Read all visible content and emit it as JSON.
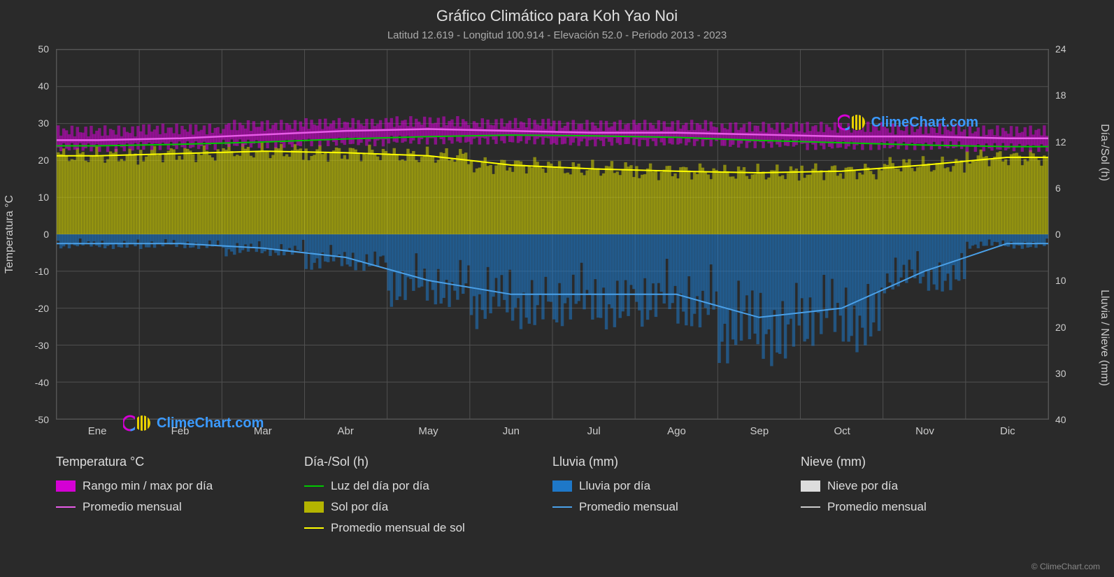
{
  "title": "Gráfico Climático para Koh Yao Noi",
  "subtitle": "Latitud 12.619 - Longitud 100.914 - Elevación 52.0 - Periodo 2013 - 2023",
  "background_color": "#2a2a2a",
  "grid_color": "#505050",
  "text_color": "#cccccc",
  "watermark_text": "ClimeChart.com",
  "watermark_color": "#3b9aff",
  "copyright": "© ClimeChart.com",
  "x_axis": {
    "labels": [
      "Ene",
      "Feb",
      "Mar",
      "Abr",
      "May",
      "Jun",
      "Jul",
      "Ago",
      "Sep",
      "Oct",
      "Nov",
      "Dic"
    ]
  },
  "y_left": {
    "label": "Temperatura °C",
    "min": -50,
    "max": 50,
    "ticks": [
      -50,
      -40,
      -30,
      -20,
      -10,
      0,
      10,
      20,
      30,
      40,
      50
    ]
  },
  "y_right_top": {
    "label": "Día-/Sol (h)",
    "min": 0,
    "max": 24,
    "ticks": [
      0,
      6,
      12,
      18,
      24
    ]
  },
  "y_right_bottom": {
    "label": "Lluvia / Nieve (mm)",
    "min": 0,
    "max": 40,
    "ticks": [
      0,
      10,
      20,
      30,
      40
    ]
  },
  "series": {
    "temp_range_daily": {
      "color": "#d400d4",
      "low": [
        23.5,
        24,
        24.5,
        25,
        25.5,
        25.5,
        25,
        25,
        24.5,
        24,
        24,
        23.5
      ],
      "high": [
        28,
        28.5,
        29.5,
        30,
        30.5,
        30,
        29.5,
        29.5,
        29,
        29,
        28.5,
        28
      ]
    },
    "temp_monthly_avg": {
      "color": "#e85ce8",
      "line_width": 2.5,
      "values": [
        25.5,
        26,
        27,
        28,
        28.5,
        28,
        27.5,
        27.5,
        27,
        26.5,
        26.5,
        26
      ]
    },
    "daylight_per_day": {
      "color": "#00c800",
      "line_width": 2,
      "values": [
        11.5,
        11.7,
        12.0,
        12.4,
        12.7,
        12.9,
        12.8,
        12.6,
        12.2,
        11.9,
        11.6,
        11.4
      ]
    },
    "sun_per_day": {
      "color": "#d4d400",
      "fill_opacity": 0.55,
      "values": [
        10.2,
        10.5,
        10.8,
        10.6,
        10.2,
        9.0,
        8.5,
        8.2,
        8.0,
        8.2,
        9.0,
        10.0
      ]
    },
    "sun_monthly_avg": {
      "color": "#ffff00",
      "line_width": 2,
      "values": [
        10.2,
        10.5,
        10.8,
        10.6,
        10.2,
        9.0,
        8.5,
        8.2,
        8.0,
        8.2,
        9.0,
        10.0
      ]
    },
    "rain_per_day": {
      "color": "#1e78c8",
      "fill_opacity": 0.55,
      "values": [
        2,
        2,
        3,
        5,
        10,
        13,
        13,
        13,
        18,
        16,
        8,
        2
      ]
    },
    "rain_monthly_avg": {
      "color": "#4aa0e8",
      "line_width": 2,
      "values": [
        2,
        2,
        3,
        5,
        10,
        13,
        13,
        13,
        18,
        16,
        8,
        2
      ]
    },
    "snow_per_day": {
      "color": "#dddddd",
      "values": [
        0,
        0,
        0,
        0,
        0,
        0,
        0,
        0,
        0,
        0,
        0,
        0
      ]
    },
    "snow_monthly_avg": {
      "color": "#cccccc",
      "line_width": 2,
      "values": [
        0,
        0,
        0,
        0,
        0,
        0,
        0,
        0,
        0,
        0,
        0,
        0
      ]
    }
  },
  "legend": {
    "col1": {
      "heading": "Temperatura °C",
      "items": [
        {
          "type": "swatch",
          "color": "#d400d4",
          "label": "Rango min / max por día"
        },
        {
          "type": "line",
          "color": "#e85ce8",
          "label": "Promedio mensual"
        }
      ]
    },
    "col2": {
      "heading": "Día-/Sol (h)",
      "items": [
        {
          "type": "line",
          "color": "#00c800",
          "label": "Luz del día por día"
        },
        {
          "type": "swatch",
          "color": "#b4b400",
          "label": "Sol por día"
        },
        {
          "type": "line",
          "color": "#ffff00",
          "label": "Promedio mensual de sol"
        }
      ]
    },
    "col3": {
      "heading": "Lluvia (mm)",
      "items": [
        {
          "type": "swatch",
          "color": "#1e78c8",
          "label": "Lluvia por día"
        },
        {
          "type": "line",
          "color": "#4aa0e8",
          "label": "Promedio mensual"
        }
      ]
    },
    "col4": {
      "heading": "Nieve (mm)",
      "items": [
        {
          "type": "swatch",
          "color": "#dddddd",
          "label": "Nieve por día"
        },
        {
          "type": "line",
          "color": "#cccccc",
          "label": "Promedio mensual"
        }
      ]
    }
  }
}
